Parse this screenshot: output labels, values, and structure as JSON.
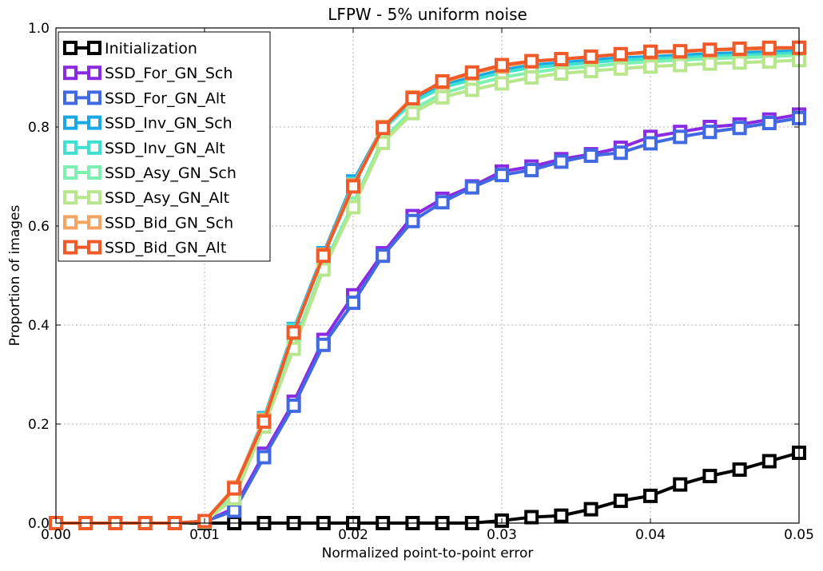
{
  "chart_data": {
    "type": "line",
    "title": "LFPW - 5% uniform noise",
    "xlabel": "Normalized point-to-point error",
    "ylabel": "Proportion of images",
    "xlim": [
      0,
      0.05
    ],
    "ylim": [
      0,
      1.0
    ],
    "xticks": [
      "0.00",
      "0.01",
      "0.02",
      "0.03",
      "0.04",
      "0.05"
    ],
    "yticks": [
      "0.0",
      "0.2",
      "0.4",
      "0.6",
      "0.8",
      "1.0"
    ],
    "grid": true,
    "legend_position": "top-left",
    "x": [
      0.0,
      0.002,
      0.004,
      0.006,
      0.008,
      0.01,
      0.012,
      0.014,
      0.016,
      0.018,
      0.02,
      0.022,
      0.024,
      0.026,
      0.028,
      0.03,
      0.032,
      0.034,
      0.036,
      0.038,
      0.04,
      0.042,
      0.044,
      0.046,
      0.048,
      0.05
    ],
    "series": [
      {
        "name": "Initialization",
        "color": "#000000",
        "values": [
          0,
          0,
          0,
          0,
          0,
          0,
          0,
          0,
          0,
          0,
          0,
          0,
          0,
          0,
          0,
          0.005,
          0.012,
          0.015,
          0.028,
          0.045,
          0.055,
          0.078,
          0.095,
          0.108,
          0.125,
          0.142
        ]
      },
      {
        "name": "SSD_For_GN_Sch",
        "color": "#8a2be2",
        "values": [
          0,
          0,
          0,
          0,
          0,
          0.003,
          0.03,
          0.14,
          0.245,
          0.37,
          0.46,
          0.545,
          0.62,
          0.655,
          0.68,
          0.71,
          0.72,
          0.735,
          0.745,
          0.758,
          0.78,
          0.79,
          0.8,
          0.805,
          0.815,
          0.825
        ]
      },
      {
        "name": "SSD_For_GN_Alt",
        "color": "#4169e1",
        "values": [
          0,
          0,
          0,
          0,
          0,
          0.003,
          0.025,
          0.133,
          0.237,
          0.36,
          0.445,
          0.54,
          0.61,
          0.648,
          0.678,
          0.703,
          0.713,
          0.73,
          0.742,
          0.748,
          0.767,
          0.78,
          0.79,
          0.798,
          0.808,
          0.818
        ]
      },
      {
        "name": "SSD_Inv_GN_Sch",
        "color": "#1aa7e6",
        "values": [
          0,
          0,
          0,
          0,
          0,
          0.004,
          0.07,
          0.212,
          0.392,
          0.545,
          0.69,
          0.8,
          0.855,
          0.885,
          0.9,
          0.915,
          0.925,
          0.93,
          0.935,
          0.94,
          0.942,
          0.945,
          0.948,
          0.95,
          0.952,
          0.955
        ]
      },
      {
        "name": "SSD_Inv_GN_Alt",
        "color": "#40e0d0",
        "values": [
          0,
          0,
          0,
          0,
          0,
          0.004,
          0.068,
          0.21,
          0.39,
          0.54,
          0.685,
          0.795,
          0.85,
          0.88,
          0.895,
          0.91,
          0.92,
          0.925,
          0.93,
          0.935,
          0.938,
          0.94,
          0.943,
          0.945,
          0.947,
          0.95
        ]
      },
      {
        "name": "SSD_Asy_GN_Sch",
        "color": "#7ef0b0",
        "values": [
          0,
          0,
          0,
          0,
          0,
          0.003,
          0.055,
          0.2,
          0.36,
          0.52,
          0.645,
          0.775,
          0.835,
          0.868,
          0.885,
          0.9,
          0.91,
          0.918,
          0.922,
          0.928,
          0.932,
          0.935,
          0.938,
          0.94,
          0.942,
          0.945
        ]
      },
      {
        "name": "SSD_Asy_GN_Alt",
        "color": "#b8e68c",
        "values": [
          0,
          0,
          0,
          0,
          0,
          0.003,
          0.05,
          0.195,
          0.352,
          0.512,
          0.638,
          0.768,
          0.828,
          0.86,
          0.875,
          0.888,
          0.9,
          0.908,
          0.913,
          0.918,
          0.922,
          0.925,
          0.928,
          0.93,
          0.932,
          0.935
        ]
      },
      {
        "name": "SSD_Bid_GN_Sch",
        "color": "#f4a460",
        "values": [
          0,
          0,
          0,
          0,
          0,
          0.004,
          0.072,
          0.208,
          0.385,
          0.542,
          0.682,
          0.8,
          0.86,
          0.89,
          0.908,
          0.922,
          0.932,
          0.937,
          0.942,
          0.947,
          0.95,
          0.952,
          0.955,
          0.957,
          0.958,
          0.96
        ]
      },
      {
        "name": "SSD_Bid_GN_Alt",
        "color": "#f05a28",
        "values": [
          0,
          0,
          0,
          0,
          0,
          0.004,
          0.07,
          0.205,
          0.385,
          0.54,
          0.68,
          0.798,
          0.858,
          0.892,
          0.91,
          0.925,
          0.933,
          0.937,
          0.942,
          0.947,
          0.952,
          0.953,
          0.956,
          0.958,
          0.96,
          0.96
        ]
      }
    ]
  }
}
